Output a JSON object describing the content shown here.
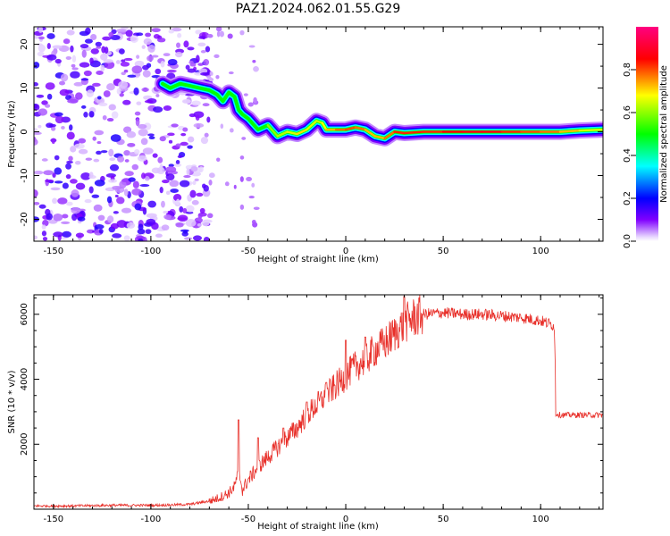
{
  "title": "PAZ1.2024.062.01.55.G29",
  "chart_data": [
    {
      "type": "heatmap",
      "xlabel": "Height of straight line (km)",
      "ylabel": "Frequency (Hz)",
      "xlim": [
        -160,
        132
      ],
      "ylim": [
        -25,
        24
      ],
      "xticks": [
        -150,
        -100,
        -50,
        0,
        50,
        100
      ],
      "yticks": [
        -20,
        -10,
        0,
        10,
        20
      ],
      "colorbar": {
        "label": "Normalized spectral amplitude",
        "range": [
          0.0,
          1.0
        ],
        "ticks": [
          0.0,
          0.2,
          0.4,
          0.6,
          0.8
        ],
        "colors": [
          "#ffffff",
          "#8000ff",
          "#0000ff",
          "#00ffff",
          "#00ff00",
          "#ffff00",
          "#ff0000",
          "#ff0080"
        ]
      },
      "noise_region_x": [
        -160,
        -70
      ],
      "ridge": {
        "x": [
          -94,
          -90,
          -85,
          -80,
          -75,
          -70,
          -66,
          -63,
          -60,
          -57,
          -55,
          -53,
          -50,
          -45,
          -40,
          -35,
          -30,
          -25,
          -20,
          -15,
          -12,
          -10,
          -5,
          0,
          5,
          10,
          15,
          20,
          25,
          30,
          40,
          50,
          60,
          70,
          80,
          90,
          100,
          110,
          120,
          132
        ],
        "frequency": [
          11,
          10,
          11,
          10.5,
          10,
          9.5,
          8.5,
          7,
          9,
          8,
          5,
          4,
          3,
          0.5,
          1.5,
          -1,
          0,
          -0.5,
          0.5,
          2.5,
          2,
          0.5,
          0.5,
          0.5,
          1,
          0.5,
          -1,
          -1.5,
          0,
          -0.3,
          0,
          0,
          0,
          0,
          0,
          0,
          0,
          0,
          0.3,
          0.5
        ],
        "amplitude": [
          0.5,
          0.45,
          0.5,
          0.5,
          0.45,
          0.35,
          0.35,
          0.3,
          0.35,
          0.3,
          0.35,
          0.4,
          0.45,
          0.5,
          0.55,
          0.65,
          0.6,
          0.7,
          0.7,
          0.6,
          0.65,
          0.7,
          0.75,
          0.8,
          0.8,
          0.75,
          0.7,
          0.75,
          0.8,
          0.85,
          0.8,
          0.85,
          0.85,
          0.9,
          0.85,
          0.8,
          0.8,
          0.75,
          0.7,
          0.6
        ]
      },
      "grid": false
    },
    {
      "type": "line",
      "xlabel": "Height of straight line (km)",
      "ylabel": "SNR (10 * v/v)",
      "xlim": [
        -160,
        132
      ],
      "ylim": [
        0,
        6600
      ],
      "xticks": [
        -150,
        -100,
        -50,
        0,
        50,
        100
      ],
      "yticks": [
        2000,
        4000,
        6000
      ],
      "grid": false,
      "color": "#e8302a",
      "x": [
        -160,
        -140,
        -120,
        -100,
        -90,
        -80,
        -70,
        -65,
        -60,
        -57,
        -55,
        -53,
        -50,
        -45,
        -40,
        -35,
        -30,
        -25,
        -20,
        -15,
        -10,
        -5,
        0,
        5,
        10,
        15,
        20,
        25,
        30,
        35,
        40,
        50,
        60,
        70,
        80,
        90,
        100,
        105,
        107,
        108,
        110,
        120,
        132
      ],
      "snr": [
        100,
        100,
        120,
        120,
        130,
        150,
        250,
        350,
        500,
        700,
        1200,
        600,
        900,
        1300,
        1600,
        1900,
        2200,
        2500,
        2900,
        3200,
        3500,
        3800,
        4100,
        4400,
        4600,
        4900,
        5100,
        5400,
        5700,
        5900,
        6000,
        6050,
        6000,
        6000,
        5950,
        5900,
        5800,
        5700,
        5650,
        2950,
        2900,
        2900,
        2900
      ],
      "spikes": [
        {
          "x": -55,
          "snr": 2750
        },
        {
          "x": -45,
          "snr": 2200
        },
        {
          "x": -32,
          "snr": 2500
        },
        {
          "x": -20,
          "snr": 3300
        },
        {
          "x": -10,
          "snr": 3900
        },
        {
          "x": 0,
          "snr": 5200
        },
        {
          "x": 10,
          "snr": 5300
        },
        {
          "x": 30,
          "snr": 6550
        }
      ]
    }
  ]
}
